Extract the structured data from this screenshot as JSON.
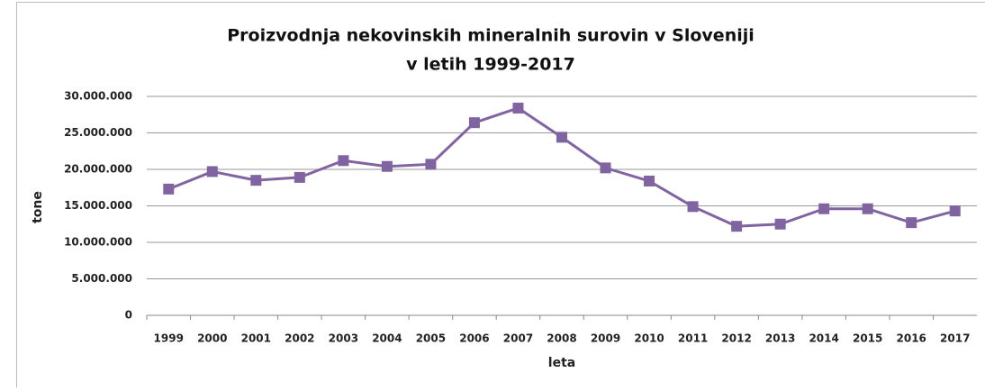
{
  "chart_data": {
    "type": "line",
    "title": [
      "Proizvodnja nekovinskih mineralnih surovin v Sloveniji",
      "v letih 1999-2017"
    ],
    "x_label": "leta",
    "y_label": "tone",
    "categories": [
      "1999",
      "2000",
      "2001",
      "2002",
      "2003",
      "2004",
      "2005",
      "2006",
      "2007",
      "2008",
      "2009",
      "2010",
      "2011",
      "2012",
      "2013",
      "2014",
      "2015",
      "2016",
      "2017"
    ],
    "series": [
      {
        "color": "#8064a2",
        "values": [
          17300000,
          19700000,
          18500000,
          18900000,
          21200000,
          20400000,
          20700000,
          26400000,
          28400000,
          24400000,
          20200000,
          18400000,
          14900000,
          12200000,
          12500000,
          14600000,
          14600000,
          12700000,
          14300000
        ]
      }
    ],
    "ylim": [
      0,
      30000000
    ],
    "yticks": [
      0,
      {
        "value": 5000000,
        "label": "5.000.000"
      },
      {
        "value": 10000000,
        "label": "10.000.000"
      },
      {
        "value": 15000000,
        "label": "15.000.000"
      },
      {
        "value": 20000000,
        "label": "20.000.000"
      },
      {
        "value": 25000000,
        "label": "25.000.000"
      },
      {
        "value": 30000000,
        "label": "30.000.000"
      }
    ],
    "grid": true
  }
}
